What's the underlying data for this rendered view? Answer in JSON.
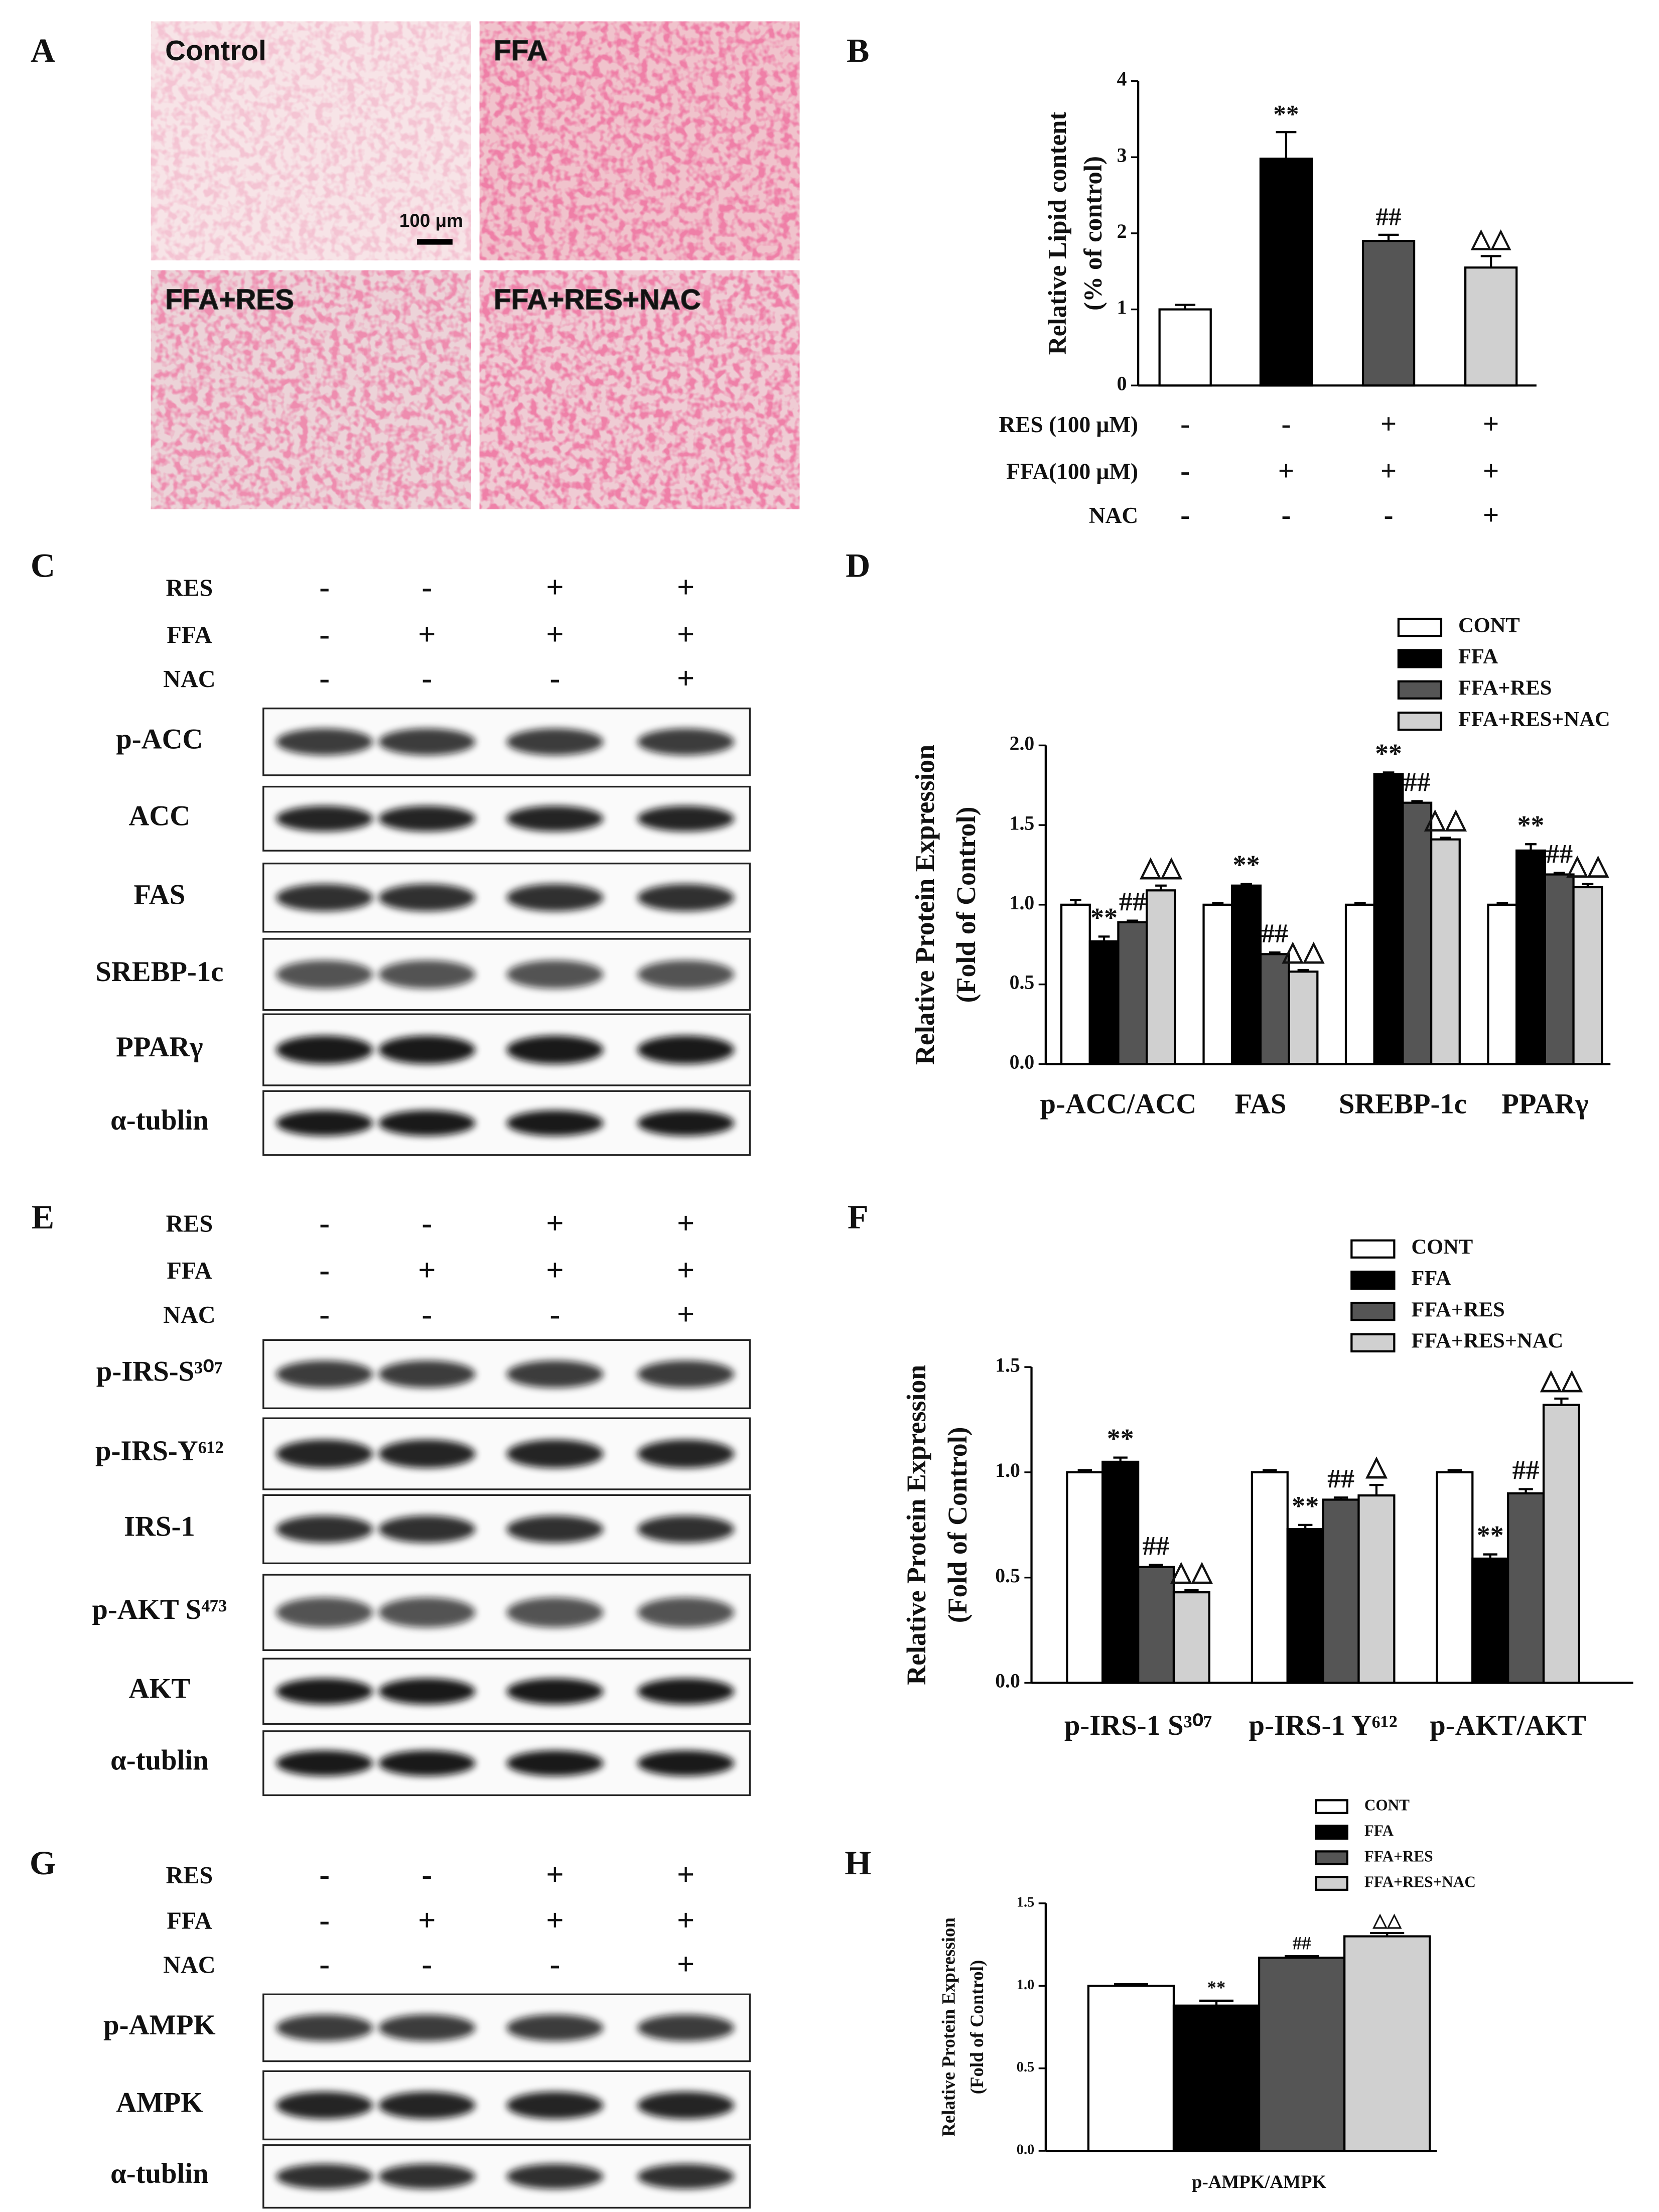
{
  "panel_labels": [
    "A",
    "B",
    "C",
    "D",
    "E",
    "F",
    "G",
    "H"
  ],
  "micrographs": {
    "labels": [
      "Control",
      "FFA",
      "FFA+RES",
      "FFA+RES+NAC"
    ],
    "scale_bar": "100 μm"
  },
  "blots": [
    {
      "treatments": [
        {
          "label": "RES",
          "signs": [
            "-",
            "-",
            "+",
            "+"
          ]
        },
        {
          "label": "FFA",
          "signs": [
            "-",
            "+",
            "+",
            "+"
          ]
        },
        {
          "label": "NAC",
          "signs": [
            "-",
            "-",
            "-",
            "+"
          ]
        }
      ],
      "proteins": [
        "p-ACC",
        "ACC",
        "FAS",
        "SREBP-1c",
        "PPARγ",
        "α-tublin"
      ]
    },
    {
      "treatments": [
        {
          "label": "RES",
          "signs": [
            "-",
            "-",
            "+",
            "+"
          ]
        },
        {
          "label": "FFA",
          "signs": [
            "-",
            "+",
            "+",
            "+"
          ]
        },
        {
          "label": "NAC",
          "signs": [
            "-",
            "-",
            "-",
            "+"
          ]
        }
      ],
      "proteins": [
        "p-IRS-S³⁰⁷",
        "p-IRS-Y⁶¹²",
        "IRS-1",
        "p-AKT S⁴⁷³",
        "AKT",
        "α-tublin"
      ]
    },
    {
      "treatments": [
        {
          "label": "RES",
          "signs": [
            "-",
            "-",
            "+",
            "+"
          ]
        },
        {
          "label": "FFA",
          "signs": [
            "-",
            "+",
            "+",
            "+"
          ]
        },
        {
          "label": "NAC",
          "signs": [
            "-",
            "-",
            "-",
            "+"
          ]
        }
      ],
      "proteins": [
        "p-AMPK",
        "AMPK",
        "α-tublin"
      ]
    }
  ],
  "chart_data": [
    {
      "type": "bar",
      "y_label": [
        "Relative Lipid content",
        "(% of control)"
      ],
      "categories": [
        null,
        null,
        null,
        null
      ],
      "values": [
        1.0,
        2.98,
        1.9,
        1.55
      ],
      "errors": [
        0.06,
        0.35,
        0.08,
        0.15
      ],
      "annotations": [
        null,
        "**",
        "##",
        "△△"
      ],
      "colors": [
        "#ffffff",
        "#000000",
        "#555555",
        "#d0d0d0"
      ],
      "ylim": [
        0,
        4
      ],
      "yticks": [
        0,
        1,
        2,
        3,
        4
      ],
      "treatments": [
        {
          "label": "RES (100 μM)",
          "signs": [
            "-",
            "-",
            "+",
            "+"
          ]
        },
        {
          "label": "FFA(100 μM)",
          "signs": [
            "-",
            "+",
            "+",
            "+"
          ]
        },
        {
          "label": "NAC",
          "signs": [
            "-",
            "-",
            "-",
            "+"
          ]
        }
      ]
    },
    {
      "type": "grouped_bar",
      "y_label": [
        "Relative Protein Expression",
        "(Fold of  Control)"
      ],
      "categories": [
        "p-ACC/ACC",
        "FAS",
        "SREBP-1c",
        "PPARγ"
      ],
      "series": [
        {
          "name": "CONT",
          "color": "#ffffff",
          "values": [
            1.0,
            1.0,
            1.0,
            1.0
          ],
          "errors": [
            0.03,
            0.01,
            0.01,
            0.01
          ]
        },
        {
          "name": "FFA",
          "color": "#000000",
          "values": [
            0.77,
            1.12,
            1.82,
            1.34
          ],
          "errors": [
            0.03,
            0.01,
            0.01,
            0.04
          ],
          "annotations": [
            "**",
            "**",
            "**",
            "**"
          ]
        },
        {
          "name": "FFA+RES",
          "color": "#555555",
          "values": [
            0.89,
            0.69,
            1.64,
            1.19
          ],
          "errors": [
            0.01,
            0.01,
            0.01,
            0.01
          ],
          "annotations": [
            "##",
            "##",
            "##",
            "##"
          ]
        },
        {
          "name": "FFA+RES+NAC",
          "color": "#d0d0d0",
          "values": [
            1.09,
            0.58,
            1.41,
            1.11
          ],
          "errors": [
            0.03,
            0.01,
            0.01,
            0.02
          ],
          "annotations": [
            "△△",
            "△△",
            "△△",
            "△△"
          ]
        }
      ],
      "ylim": [
        0,
        2
      ],
      "yticks": [
        {
          "value": 0,
          "label": "0.0"
        },
        {
          "value": 0.5,
          "label": "0.5"
        },
        {
          "value": 1,
          "label": "1.0"
        },
        {
          "value": 1.5,
          "label": "1.5"
        },
        {
          "value": 2,
          "label": "2.0"
        }
      ]
    },
    {
      "type": "grouped_bar",
      "y_label": [
        "Relative Protein Expression",
        "(Fold of  Control)"
      ],
      "categories": [
        "p-IRS-1 S³⁰⁷",
        "p-IRS-1 Y⁶¹²",
        "p-AKT/AKT"
      ],
      "series": [
        {
          "name": "CONT",
          "color": "#ffffff",
          "values": [
            1.0,
            1.0,
            1.0
          ],
          "errors": [
            0.01,
            0.01,
            0.01
          ]
        },
        {
          "name": "FFA",
          "color": "#000000",
          "values": [
            1.05,
            0.73,
            0.59
          ],
          "errors": [
            0.02,
            0.02,
            0.02
          ],
          "annotations": [
            "**",
            "**",
            "**"
          ]
        },
        {
          "name": "FFA+RES",
          "color": "#555555",
          "values": [
            0.55,
            0.87,
            0.9
          ],
          "errors": [
            0.01,
            0.01,
            0.02
          ],
          "annotations": [
            "##",
            "##",
            "##"
          ]
        },
        {
          "name": "FFA+RES+NAC",
          "color": "#d0d0d0",
          "values": [
            0.43,
            0.89,
            1.32
          ],
          "errors": [
            0.01,
            0.05,
            0.03
          ],
          "annotations": [
            "△△",
            "△",
            "△△"
          ]
        }
      ],
      "ylim": [
        0,
        1.5
      ],
      "yticks": [
        {
          "value": 0,
          "label": "0.0"
        },
        {
          "value": 0.5,
          "label": "0.5"
        },
        {
          "value": 1,
          "label": "1.0"
        },
        {
          "value": 1.5,
          "label": "1.5"
        }
      ]
    },
    {
      "type": "grouped_bar",
      "y_label": [
        "Relative Protein Expression",
        "(Fold of  Control)"
      ],
      "categories": [
        "p-AMPK/AMPK"
      ],
      "series": [
        {
          "name": "CONT",
          "color": "#ffffff",
          "values": [
            1.0
          ],
          "errors": [
            0.01
          ]
        },
        {
          "name": "FFA",
          "color": "#000000",
          "values": [
            0.88
          ],
          "errors": [
            0.03
          ],
          "annotations": [
            "**"
          ]
        },
        {
          "name": "FFA+RES",
          "color": "#555555",
          "values": [
            1.17
          ],
          "errors": [
            0.01
          ],
          "annotations": [
            "##"
          ]
        },
        {
          "name": "FFA+RES+NAC",
          "color": "#d0d0d0",
          "values": [
            1.3
          ],
          "errors": [
            0.02
          ],
          "annotations": [
            "△△"
          ]
        }
      ],
      "ylim": [
        0,
        1.5
      ],
      "yticks": [
        {
          "value": 0,
          "label": "0.0"
        },
        {
          "value": 0.5,
          "label": "0.5"
        },
        {
          "value": 1,
          "label": "1.0"
        },
        {
          "value": 1.5,
          "label": "1.5"
        }
      ]
    }
  ]
}
